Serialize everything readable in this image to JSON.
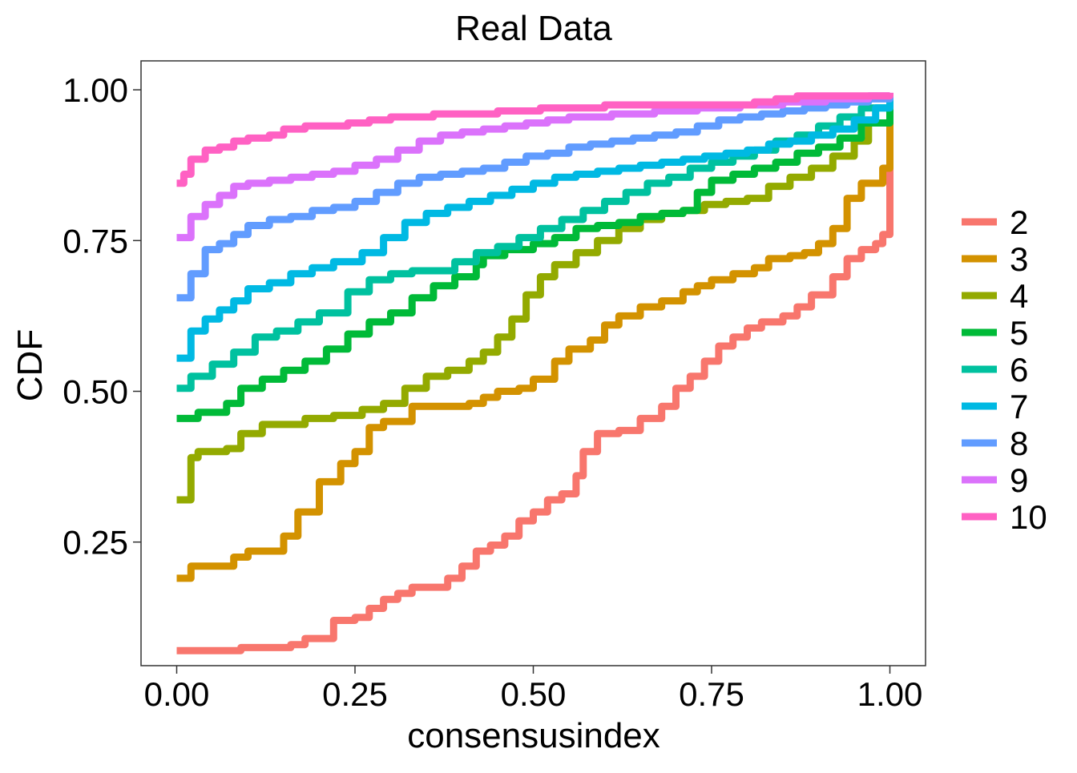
{
  "chart_data": {
    "type": "line",
    "title": "Real Data",
    "xlabel": "consensusindex",
    "ylabel": "CDF",
    "xlim": [
      -0.05,
      1.05
    ],
    "ylim": [
      0.045,
      1.048
    ],
    "xticks": [
      0.0,
      0.25,
      0.5,
      0.75,
      1.0
    ],
    "xtick_labels": [
      "0.00",
      "0.25",
      "0.50",
      "0.75",
      "1.00"
    ],
    "yticks": [
      0.25,
      0.5,
      0.75,
      1.0
    ],
    "ytick_labels": [
      "0.25",
      "0.50",
      "0.75",
      "1.00"
    ],
    "grid": false,
    "legend_position": "right",
    "series": [
      {
        "name": "2",
        "color": "#F8766D",
        "x": [
          0.0,
          0.08,
          0.09,
          0.15,
          0.16,
          0.18,
          0.22,
          0.25,
          0.27,
          0.29,
          0.31,
          0.33,
          0.36,
          0.38,
          0.4,
          0.42,
          0.44,
          0.46,
          0.48,
          0.5,
          0.52,
          0.54,
          0.56,
          0.57,
          0.59,
          0.62,
          0.65,
          0.68,
          0.7,
          0.72,
          0.74,
          0.76,
          0.78,
          0.8,
          0.82,
          0.85,
          0.87,
          0.89,
          0.92,
          0.94,
          0.96,
          0.98,
          0.99,
          1.0
        ],
        "y": [
          0.07,
          0.07,
          0.075,
          0.075,
          0.08,
          0.09,
          0.12,
          0.125,
          0.14,
          0.155,
          0.165,
          0.175,
          0.175,
          0.19,
          0.21,
          0.235,
          0.245,
          0.26,
          0.285,
          0.3,
          0.32,
          0.33,
          0.36,
          0.4,
          0.43,
          0.435,
          0.455,
          0.475,
          0.505,
          0.525,
          0.55,
          0.575,
          0.59,
          0.605,
          0.615,
          0.625,
          0.64,
          0.66,
          0.69,
          0.72,
          0.735,
          0.745,
          0.76,
          0.99
        ]
      },
      {
        "name": "3",
        "color": "#D39200",
        "x": [
          0.0,
          0.02,
          0.05,
          0.08,
          0.1,
          0.13,
          0.15,
          0.17,
          0.2,
          0.23,
          0.25,
          0.27,
          0.29,
          0.33,
          0.35,
          0.38,
          0.41,
          0.43,
          0.45,
          0.48,
          0.5,
          0.53,
          0.55,
          0.58,
          0.6,
          0.62,
          0.65,
          0.68,
          0.71,
          0.73,
          0.75,
          0.78,
          0.81,
          0.83,
          0.86,
          0.88,
          0.9,
          0.92,
          0.94,
          0.96,
          0.97,
          0.99,
          1.0
        ],
        "y": [
          0.19,
          0.21,
          0.21,
          0.225,
          0.235,
          0.235,
          0.26,
          0.3,
          0.35,
          0.38,
          0.4,
          0.44,
          0.45,
          0.475,
          0.475,
          0.475,
          0.48,
          0.49,
          0.5,
          0.505,
          0.52,
          0.55,
          0.57,
          0.585,
          0.61,
          0.625,
          0.64,
          0.65,
          0.665,
          0.675,
          0.685,
          0.695,
          0.705,
          0.72,
          0.725,
          0.73,
          0.745,
          0.77,
          0.82,
          0.845,
          0.845,
          0.87,
          0.99
        ]
      },
      {
        "name": "4",
        "color": "#93AA00",
        "x": [
          0.0,
          0.02,
          0.03,
          0.07,
          0.09,
          0.12,
          0.15,
          0.18,
          0.22,
          0.26,
          0.29,
          0.32,
          0.35,
          0.38,
          0.41,
          0.43,
          0.45,
          0.47,
          0.49,
          0.51,
          0.53,
          0.56,
          0.59,
          0.62,
          0.65,
          0.68,
          0.71,
          0.74,
          0.77,
          0.8,
          0.83,
          0.86,
          0.89,
          0.92,
          0.95,
          0.97,
          1.0
        ],
        "y": [
          0.32,
          0.39,
          0.4,
          0.405,
          0.43,
          0.445,
          0.445,
          0.455,
          0.46,
          0.47,
          0.48,
          0.505,
          0.525,
          0.535,
          0.55,
          0.565,
          0.59,
          0.62,
          0.66,
          0.69,
          0.71,
          0.73,
          0.75,
          0.77,
          0.785,
          0.795,
          0.8,
          0.81,
          0.815,
          0.82,
          0.84,
          0.855,
          0.87,
          0.89,
          0.915,
          0.945,
          0.99
        ]
      },
      {
        "name": "5",
        "color": "#00BA38",
        "x": [
          0.0,
          0.03,
          0.07,
          0.09,
          0.12,
          0.15,
          0.18,
          0.21,
          0.24,
          0.27,
          0.3,
          0.33,
          0.36,
          0.39,
          0.42,
          0.43,
          0.46,
          0.5,
          0.53,
          0.56,
          0.59,
          0.62,
          0.65,
          0.68,
          0.71,
          0.73,
          0.75,
          0.78,
          0.81,
          0.84,
          0.87,
          0.9,
          0.93,
          0.96,
          1.0
        ],
        "y": [
          0.455,
          0.465,
          0.48,
          0.505,
          0.52,
          0.535,
          0.55,
          0.57,
          0.595,
          0.615,
          0.63,
          0.655,
          0.675,
          0.69,
          0.71,
          0.725,
          0.735,
          0.745,
          0.755,
          0.77,
          0.775,
          0.78,
          0.79,
          0.795,
          0.8,
          0.83,
          0.85,
          0.86,
          0.87,
          0.88,
          0.895,
          0.905,
          0.92,
          0.945,
          0.99
        ]
      },
      {
        "name": "6",
        "color": "#00C19F",
        "x": [
          0.0,
          0.02,
          0.05,
          0.08,
          0.11,
          0.14,
          0.17,
          0.2,
          0.24,
          0.27,
          0.3,
          0.33,
          0.36,
          0.39,
          0.42,
          0.45,
          0.48,
          0.51,
          0.54,
          0.57,
          0.6,
          0.63,
          0.66,
          0.69,
          0.72,
          0.75,
          0.78,
          0.81,
          0.84,
          0.87,
          0.9,
          0.93,
          0.96,
          1.0
        ],
        "y": [
          0.505,
          0.525,
          0.545,
          0.565,
          0.59,
          0.6,
          0.615,
          0.63,
          0.665,
          0.685,
          0.695,
          0.7,
          0.7,
          0.715,
          0.73,
          0.74,
          0.755,
          0.77,
          0.785,
          0.8,
          0.815,
          0.83,
          0.845,
          0.855,
          0.87,
          0.88,
          0.89,
          0.9,
          0.915,
          0.925,
          0.94,
          0.955,
          0.97,
          0.99
        ]
      },
      {
        "name": "7",
        "color": "#00B9E3",
        "x": [
          0.0,
          0.02,
          0.04,
          0.06,
          0.08,
          0.1,
          0.13,
          0.16,
          0.19,
          0.22,
          0.26,
          0.29,
          0.32,
          0.35,
          0.38,
          0.41,
          0.44,
          0.47,
          0.5,
          0.53,
          0.56,
          0.59,
          0.62,
          0.65,
          0.68,
          0.71,
          0.74,
          0.77,
          0.8,
          0.83,
          0.86,
          0.89,
          0.92,
          0.95,
          0.98,
          1.0
        ],
        "y": [
          0.555,
          0.6,
          0.62,
          0.635,
          0.65,
          0.67,
          0.68,
          0.695,
          0.705,
          0.715,
          0.73,
          0.755,
          0.78,
          0.795,
          0.805,
          0.815,
          0.825,
          0.835,
          0.845,
          0.855,
          0.86,
          0.865,
          0.87,
          0.875,
          0.88,
          0.885,
          0.89,
          0.895,
          0.9,
          0.91,
          0.915,
          0.925,
          0.935,
          0.95,
          0.97,
          0.99
        ]
      },
      {
        "name": "8",
        "color": "#619CFF",
        "x": [
          0.0,
          0.02,
          0.04,
          0.06,
          0.08,
          0.1,
          0.13,
          0.16,
          0.19,
          0.22,
          0.25,
          0.28,
          0.31,
          0.34,
          0.37,
          0.4,
          0.43,
          0.46,
          0.49,
          0.52,
          0.55,
          0.58,
          0.61,
          0.64,
          0.67,
          0.7,
          0.73,
          0.76,
          0.79,
          0.82,
          0.85,
          0.88,
          0.91,
          0.94,
          0.97,
          1.0
        ],
        "y": [
          0.655,
          0.695,
          0.735,
          0.745,
          0.76,
          0.775,
          0.785,
          0.79,
          0.8,
          0.805,
          0.815,
          0.83,
          0.845,
          0.855,
          0.86,
          0.865,
          0.87,
          0.88,
          0.89,
          0.895,
          0.905,
          0.91,
          0.915,
          0.92,
          0.925,
          0.93,
          0.94,
          0.95,
          0.955,
          0.96,
          0.965,
          0.97,
          0.975,
          0.98,
          0.985,
          0.99
        ]
      },
      {
        "name": "9",
        "color": "#DB72FB",
        "x": [
          0.0,
          0.02,
          0.04,
          0.06,
          0.08,
          0.1,
          0.13,
          0.16,
          0.19,
          0.22,
          0.25,
          0.28,
          0.31,
          0.34,
          0.37,
          0.4,
          0.43,
          0.46,
          0.49,
          0.52,
          0.55,
          0.58,
          0.61,
          0.64,
          0.67,
          0.7,
          0.73,
          0.76,
          0.79,
          0.82,
          0.85,
          0.88,
          0.91,
          0.94,
          0.97,
          1.0
        ],
        "y": [
          0.755,
          0.79,
          0.81,
          0.825,
          0.84,
          0.845,
          0.85,
          0.855,
          0.86,
          0.865,
          0.875,
          0.885,
          0.9,
          0.915,
          0.925,
          0.93,
          0.935,
          0.94,
          0.945,
          0.95,
          0.955,
          0.955,
          0.96,
          0.96,
          0.965,
          0.965,
          0.97,
          0.97,
          0.975,
          0.975,
          0.98,
          0.98,
          0.985,
          0.985,
          0.99,
          0.995
        ]
      },
      {
        "name": "10",
        "color": "#FF61C3",
        "x": [
          0.0,
          0.01,
          0.02,
          0.04,
          0.06,
          0.08,
          0.1,
          0.13,
          0.15,
          0.18,
          0.21,
          0.24,
          0.27,
          0.3,
          0.33,
          0.36,
          0.39,
          0.42,
          0.45,
          0.48,
          0.51,
          0.54,
          0.57,
          0.6,
          0.63,
          0.66,
          0.69,
          0.72,
          0.75,
          0.78,
          0.81,
          0.84,
          0.87,
          0.9,
          0.93,
          0.96,
          1.0
        ],
        "y": [
          0.845,
          0.86,
          0.885,
          0.9,
          0.905,
          0.915,
          0.92,
          0.925,
          0.935,
          0.94,
          0.94,
          0.945,
          0.95,
          0.955,
          0.955,
          0.96,
          0.96,
          0.96,
          0.965,
          0.965,
          0.97,
          0.97,
          0.97,
          0.975,
          0.975,
          0.975,
          0.975,
          0.975,
          0.975,
          0.975,
          0.98,
          0.985,
          0.99,
          0.99,
          0.99,
          0.99,
          0.995
        ]
      }
    ]
  }
}
